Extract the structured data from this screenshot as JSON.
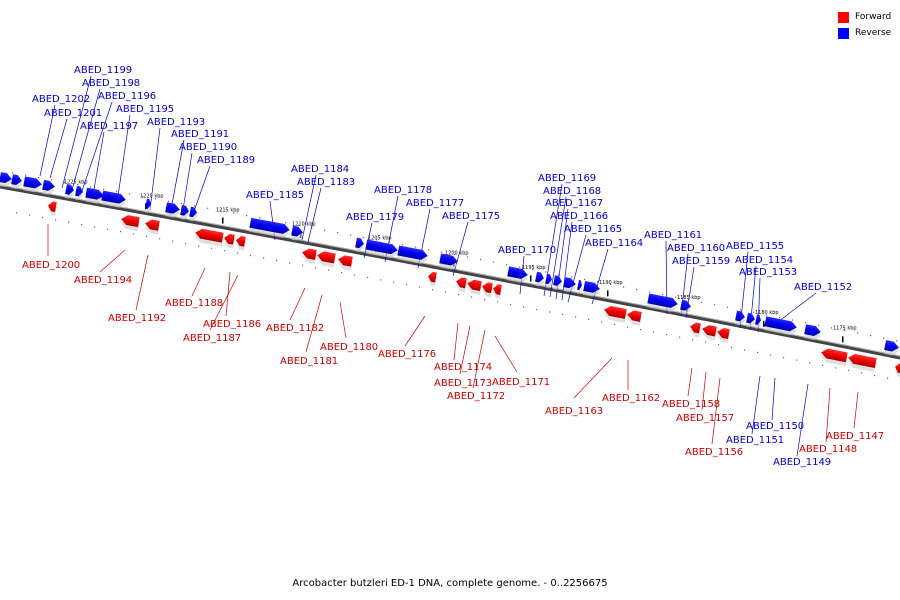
{
  "legend": {
    "forward_label": "Forward",
    "reverse_label": "Reverse",
    "forward_color": "#ff0000",
    "reverse_color": "#0000ff"
  },
  "caption": "Arcobacter butzleri ED-1 DNA, complete genome. - 0..2256675",
  "kbp_labels": [
    "1225 kbp",
    "1220 kbp",
    "1215 kbp",
    "1210 kbp",
    "1205 kbp",
    "1200 kbp",
    "1195 kbp",
    "1190 kbp",
    "1185 kbp",
    "1180 kbp",
    "1175 kbp"
  ],
  "reverse_genes": [
    "ABED_1199",
    "ABED_1198",
    "ABED_1196",
    "ABED_1202",
    "ABED_1201",
    "ABED_1197",
    "ABED_1195",
    "ABED_1193",
    "ABED_1191",
    "ABED_1190",
    "ABED_1189",
    "ABED_1185",
    "ABED_1184",
    "ABED_1183",
    "ABED_1179",
    "ABED_1178",
    "ABED_1177",
    "ABED_1175",
    "ABED_1170",
    "ABED_1169",
    "ABED_1168",
    "ABED_1167",
    "ABED_1166",
    "ABED_1165",
    "ABED_1164",
    "ABED_1161",
    "ABED_1160",
    "ABED_1159",
    "ABED_1155",
    "ABED_1154",
    "ABED_1153",
    "ABED_1152",
    "ABED_1150",
    "ABED_1151",
    "ABED_1149"
  ],
  "forward_genes": [
    "ABED_1200",
    "ABED_1194",
    "ABED_1192",
    "ABED_1188",
    "ABED_1186",
    "ABED_1187",
    "ABED_1182",
    "ABED_1181",
    "ABED_1180",
    "ABED_1176",
    "ABED_1174",
    "ABED_1173",
    "ABED_1172",
    "ABED_1171",
    "ABED_1163",
    "ABED_1162",
    "ABED_1158",
    "ABED_1157",
    "ABED_1156",
    "ABED_1147",
    "ABED_1148"
  ]
}
